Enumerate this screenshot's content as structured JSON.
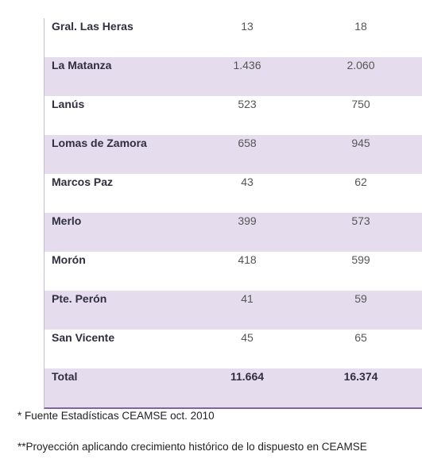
{
  "table": {
    "rows": [
      [
        "Gral. Las Heras",
        "13",
        "18"
      ],
      [
        "La Matanza",
        "1.436",
        "2.060"
      ],
      [
        "Lanús",
        "523",
        "750"
      ],
      [
        "Lomas de Zamora",
        "658",
        "945"
      ],
      [
        "Marcos Paz",
        "43",
        "62"
      ],
      [
        "Merlo",
        "399",
        "573"
      ],
      [
        "Morón",
        "418",
        "599"
      ],
      [
        "Pte. Perón",
        "41",
        "59"
      ],
      [
        "San Vicente",
        "45",
        "65"
      ],
      [
        "Total",
        "11.664",
        "16.374"
      ]
    ]
  },
  "footnotes": [
    "* Fuente Estadísticas CEAMSE oct. 2010",
    "**Proyección aplicando crecimiento histórico de lo dispuesto en CEAMSE"
  ]
}
